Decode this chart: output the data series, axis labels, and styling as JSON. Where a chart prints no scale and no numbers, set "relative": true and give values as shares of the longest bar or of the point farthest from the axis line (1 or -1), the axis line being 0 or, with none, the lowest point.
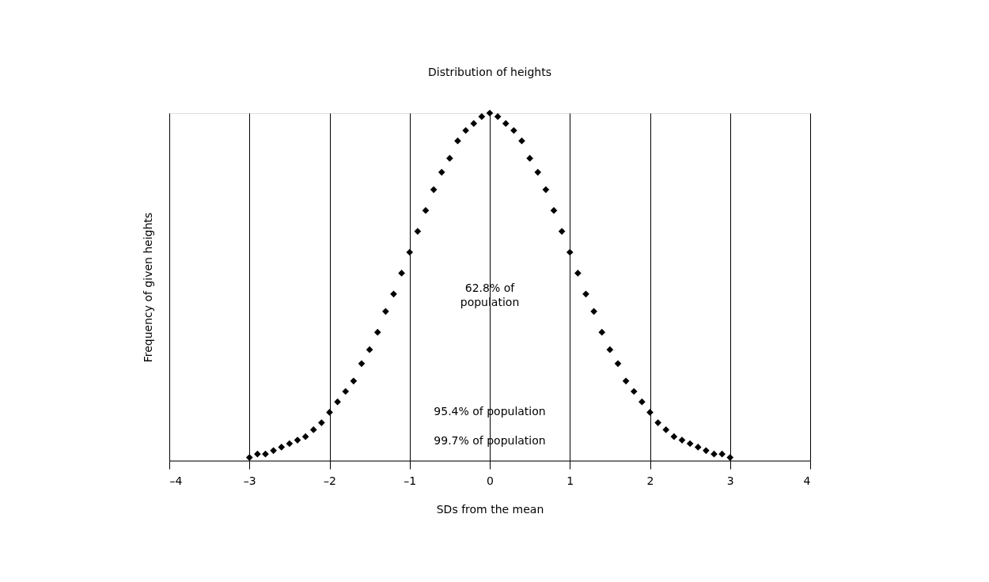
{
  "chart_data": {
    "type": "scatter",
    "title": "Distribution of heights",
    "xlabel": "SDs from the mean",
    "ylabel": "Frequency of given heights",
    "relative": true,
    "marker": "diamond",
    "grid": "x",
    "xlim": [
      -4,
      4
    ],
    "xticks": [
      {
        "value": -4,
        "label": "–4"
      },
      {
        "value": -3,
        "label": "–3"
      },
      {
        "value": -2,
        "label": "–2"
      },
      {
        "value": -1,
        "label": "–1"
      },
      0,
      1,
      2,
      3,
      4
    ],
    "x": [
      -3.0,
      -2.9,
      -2.8,
      -2.7,
      -2.6,
      -2.5,
      -2.4,
      -2.3,
      -2.2,
      -2.1,
      -2.0,
      -1.9,
      -1.8,
      -1.7,
      -1.6,
      -1.5,
      -1.4,
      -1.3,
      -1.2,
      -1.1,
      -1.0,
      -0.9,
      -0.8,
      -0.7,
      -0.6,
      -0.5,
      -0.4,
      -0.3,
      -0.2,
      -0.1,
      0.0,
      0.1,
      0.2,
      0.3,
      0.4,
      0.5,
      0.6,
      0.7,
      0.8,
      0.9,
      1.0,
      1.1,
      1.2,
      1.3,
      1.4,
      1.5,
      1.6,
      1.7,
      1.8,
      1.9,
      2.0,
      2.1,
      2.2,
      2.3,
      2.4,
      2.5,
      2.6,
      2.7,
      2.8,
      2.9,
      3.0
    ],
    "series": [
      {
        "color": "#000000",
        "values": [
          0.01,
          0.02,
          0.02,
          0.03,
          0.04,
          0.05,
          0.06,
          0.07,
          0.09,
          0.11,
          0.14,
          0.17,
          0.2,
          0.23,
          0.28,
          0.32,
          0.37,
          0.43,
          0.48,
          0.54,
          0.6,
          0.66,
          0.72,
          0.78,
          0.83,
          0.87,
          0.92,
          0.95,
          0.97,
          0.99,
          1.0,
          0.99,
          0.97,
          0.95,
          0.92,
          0.87,
          0.83,
          0.78,
          0.72,
          0.66,
          0.6,
          0.54,
          0.48,
          0.43,
          0.37,
          0.32,
          0.28,
          0.23,
          0.2,
          0.17,
          0.14,
          0.11,
          0.09,
          0.07,
          0.06,
          0.05,
          0.04,
          0.03,
          0.02,
          0.02,
          0.01
        ]
      }
    ],
    "annotations": [
      "62.8% of\npopulation",
      "95.4% of population",
      "99.7% of population"
    ]
  }
}
